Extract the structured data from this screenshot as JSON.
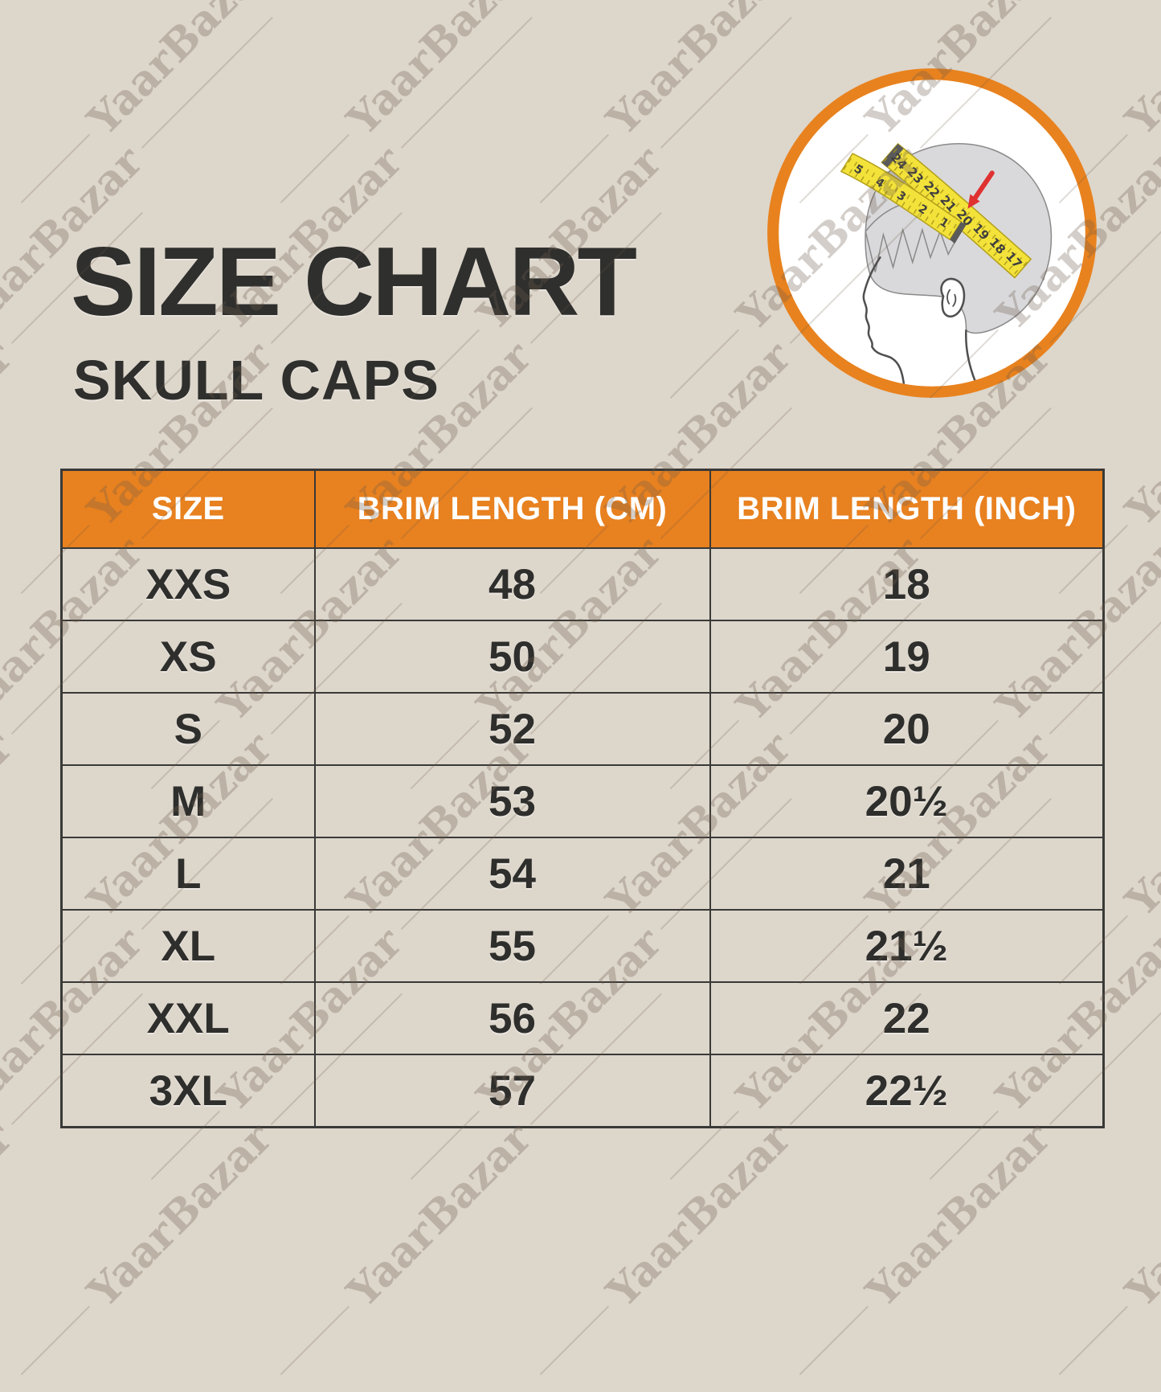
{
  "page": {
    "background": "#ddd6cb",
    "accent_orange": "#e8811f",
    "border_dark": "#393937",
    "text_dark": "#2f2f2d"
  },
  "header": {
    "title": "SIZE CHART",
    "subtitle": "SKULL CAPS"
  },
  "watermark": {
    "text": "YaarBazar"
  },
  "illustration": {
    "description": "head-side-profile-with-measuring-tape",
    "ring_color": "#e8821e",
    "tape_color": "#f3e23a",
    "arrow_color": "#e03131",
    "tape_numbers_main": [
      "24",
      "23",
      "22",
      "21",
      "20",
      "19",
      "18",
      "17"
    ],
    "tape_numbers_front": [
      "5",
      "4",
      "3",
      "2",
      "1"
    ]
  },
  "table": {
    "columns": [
      "SIZE",
      "BRIM LENGTH (CM)",
      "BRIM LENGTH (INCH)"
    ],
    "rows": [
      {
        "size": "XXS",
        "cm": "48",
        "inch": "18"
      },
      {
        "size": "XS",
        "cm": "50",
        "inch": "19"
      },
      {
        "size": "S",
        "cm": "52",
        "inch": "20"
      },
      {
        "size": "M",
        "cm": "53",
        "inch": "20½"
      },
      {
        "size": "L",
        "cm": "54",
        "inch": "21"
      },
      {
        "size": "XL",
        "cm": "55",
        "inch": "21½"
      },
      {
        "size": "XXL",
        "cm": "56",
        "inch": "22"
      },
      {
        "size": "3XL",
        "cm": "57",
        "inch": "22½"
      }
    ]
  }
}
